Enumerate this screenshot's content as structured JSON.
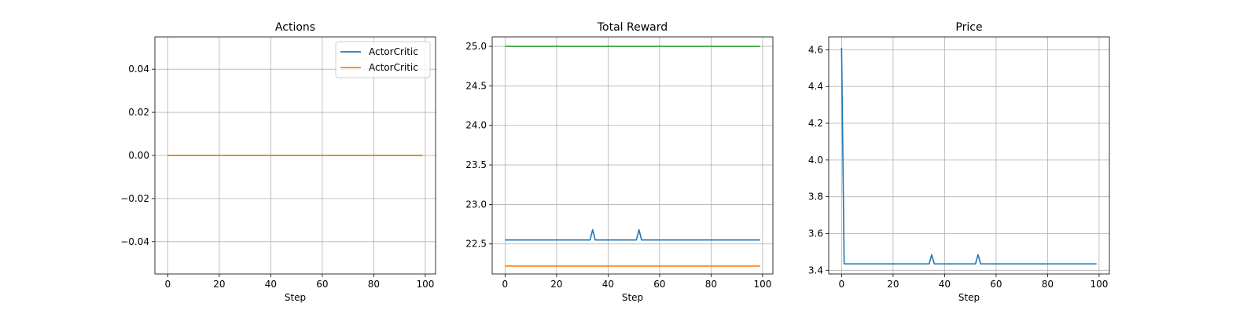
{
  "colors": {
    "blue": "#1f77b4",
    "orange": "#ff7f0e",
    "green": "#2ca02c",
    "grid": "#b0b0b0"
  },
  "chart_data": [
    {
      "type": "line",
      "title": "Actions",
      "xlabel": "Step",
      "ylabel": "",
      "xlim": [
        -5,
        104
      ],
      "ylim": [
        -0.055,
        0.055
      ],
      "xticks": [
        0,
        20,
        40,
        60,
        80,
        100
      ],
      "yticks": [
        -0.04,
        -0.02,
        0.0,
        0.02,
        0.04
      ],
      "ytick_labels": [
        "−0.04",
        "−0.02",
        "0.00",
        "0.02",
        "0.04"
      ],
      "grid": true,
      "legend": {
        "position": "top-right",
        "entries": [
          "ActorCritic",
          "ActorCritic"
        ]
      },
      "series": [
        {
          "name": "ActorCritic",
          "color": "#1f77b4",
          "x": [
            0,
            99
          ],
          "y": [
            0,
            0
          ]
        },
        {
          "name": "ActorCritic",
          "color": "#ff7f0e",
          "x": [
            0,
            99
          ],
          "y": [
            0,
            0
          ]
        }
      ]
    },
    {
      "type": "line",
      "title": "Total Reward",
      "xlabel": "Step",
      "ylabel": "",
      "xlim": [
        -5,
        104
      ],
      "ylim": [
        22.12,
        25.12
      ],
      "xticks": [
        0,
        20,
        40,
        60,
        80,
        100
      ],
      "yticks": [
        22.5,
        23.0,
        23.5,
        24.0,
        24.5,
        25.0
      ],
      "ytick_labels": [
        "22.5",
        "23.0",
        "23.5",
        "24.0",
        "24.5",
        "25.0"
      ],
      "grid": true,
      "series": [
        {
          "color": "#2ca02c",
          "x": [
            0,
            99
          ],
          "y": [
            25.0,
            25.0
          ]
        },
        {
          "color": "#1f77b4",
          "x": [
            0,
            33,
            34,
            35,
            51,
            52,
            53,
            99
          ],
          "y": [
            22.55,
            22.55,
            22.68,
            22.55,
            22.55,
            22.68,
            22.55,
            22.55
          ]
        },
        {
          "color": "#ff7f0e",
          "x": [
            0,
            99
          ],
          "y": [
            22.22,
            22.22
          ]
        }
      ]
    },
    {
      "type": "line",
      "title": "Price",
      "xlabel": "Step",
      "ylabel": "",
      "xlim": [
        -5,
        104
      ],
      "ylim": [
        3.38,
        4.67
      ],
      "xticks": [
        0,
        20,
        40,
        60,
        80,
        100
      ],
      "yticks": [
        3.4,
        3.6,
        3.8,
        4.0,
        4.2,
        4.4,
        4.6
      ],
      "ytick_labels": [
        "3.4",
        "3.6",
        "3.8",
        "4.0",
        "4.2",
        "4.4",
        "4.6"
      ],
      "grid": true,
      "series": [
        {
          "color": "#1f77b4",
          "x": [
            0,
            1,
            34,
            35,
            36,
            52,
            53,
            54,
            99
          ],
          "y": [
            4.61,
            3.435,
            3.435,
            3.485,
            3.435,
            3.435,
            3.485,
            3.435,
            3.435
          ]
        }
      ]
    }
  ]
}
